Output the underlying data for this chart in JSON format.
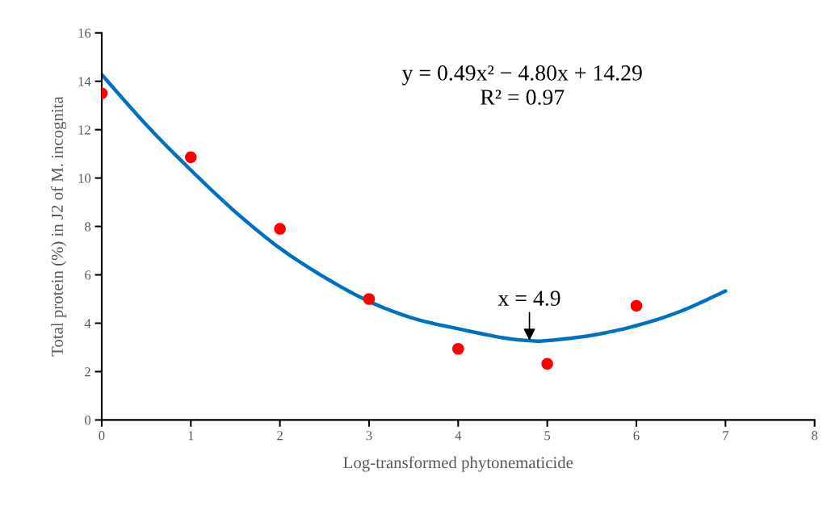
{
  "chart_data": {
    "type": "scatter",
    "xlabel": "Log-transformed phytonematicide",
    "ylabel": "Total protein (%) in J2 of M. incognita",
    "x": [
      0,
      1,
      2,
      3,
      4,
      5,
      6
    ],
    "series": [
      {
        "color": "#ff0000",
        "marker": "circle",
        "values": [
          13.5,
          10.86,
          7.9,
          5.0,
          2.94,
          2.32,
          4.72
        ]
      },
      {
        "type": "line",
        "color": "#0070c0",
        "marker": "none",
        "line_style": "solid",
        "x": [
          0,
          0.5,
          1,
          1.5,
          2,
          2.5,
          3,
          3.5,
          4,
          4.5,
          4.8,
          5,
          5.5,
          6,
          6.5,
          7
        ],
        "values": [
          14.28,
          12.2,
          10.33,
          8.6,
          7.1,
          5.9,
          4.9,
          4.2,
          3.77,
          3.4,
          3.28,
          3.28,
          3.5,
          3.9,
          4.5,
          5.33
        ]
      }
    ],
    "annotations": [
      "y = 0.49x² − 4.80x + 14.29\nR² = 0.97",
      {
        "text": "x = 4.9",
        "x": 4.8,
        "y": 3.28
      }
    ],
    "xlim": [
      0,
      8
    ],
    "xticks": [
      0,
      1,
      2,
      3,
      4,
      5,
      6,
      7,
      8
    ],
    "ylim": [
      0,
      16
    ],
    "yticks": [
      0,
      2,
      4,
      6,
      8,
      10,
      12,
      14,
      16
    ],
    "grid": false,
    "legend": false
  }
}
